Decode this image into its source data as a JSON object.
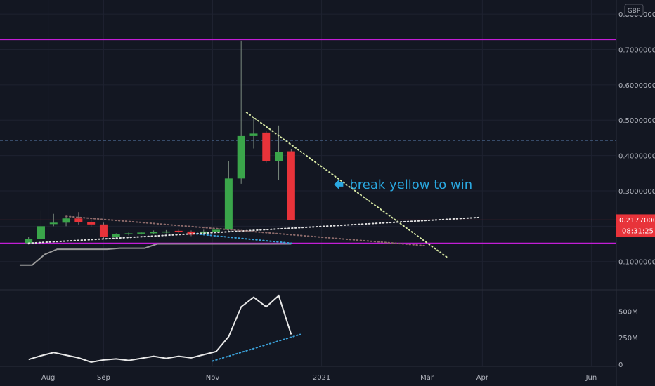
{
  "chart_data": {
    "type": "candlestick",
    "currency": "GBP",
    "price_axis": {
      "ticks": [
        0.1,
        0.2,
        0.3,
        0.4,
        0.5,
        0.6,
        0.7,
        0.8
      ],
      "tick_labels": [
        "0.10000000",
        "",
        "0.30000000",
        "0.40000000",
        "0.50000000",
        "0.60000000",
        "0.70000000",
        "0.80000000"
      ],
      "range": [
        0.02,
        0.84
      ]
    },
    "volume_axis": {
      "tick_labels": [
        "0",
        "250M",
        "500M"
      ],
      "ticks": [
        0,
        250,
        500
      ],
      "range": [
        -20,
        700
      ]
    },
    "x_labels": [
      {
        "label": "Aug",
        "date": "2020-08-01"
      },
      {
        "label": "Sep",
        "date": "2020-09-01"
      },
      {
        "label": "Nov",
        "date": "2020-11-01"
      },
      {
        "label": "2021",
        "date": "2021-01-01"
      },
      {
        "label": "Mar",
        "date": "2021-03-01"
      },
      {
        "label": "Apr",
        "date": "2021-04-01"
      },
      {
        "label": "Jun",
        "date": "2021-06-01"
      }
    ],
    "x_range": [
      "2020-07-05",
      "2021-06-15"
    ],
    "candles": [
      {
        "date": "2020-07-21",
        "o": 0.152,
        "h": 0.17,
        "l": 0.148,
        "c": 0.163
      },
      {
        "date": "2020-07-28",
        "o": 0.163,
        "h": 0.245,
        "l": 0.16,
        "c": 0.2
      },
      {
        "date": "2020-08-04",
        "o": 0.206,
        "h": 0.235,
        "l": 0.2,
        "c": 0.21
      },
      {
        "date": "2020-08-11",
        "o": 0.21,
        "h": 0.228,
        "l": 0.2,
        "c": 0.222
      },
      {
        "date": "2020-08-18",
        "o": 0.222,
        "h": 0.24,
        "l": 0.205,
        "c": 0.212
      },
      {
        "date": "2020-08-25",
        "o": 0.212,
        "h": 0.218,
        "l": 0.198,
        "c": 0.205
      },
      {
        "date": "2020-09-01",
        "o": 0.205,
        "h": 0.21,
        "l": 0.165,
        "c": 0.17
      },
      {
        "date": "2020-09-08",
        "o": 0.17,
        "h": 0.18,
        "l": 0.165,
        "c": 0.178
      },
      {
        "date": "2020-09-15",
        "o": 0.178,
        "h": 0.182,
        "l": 0.174,
        "c": 0.18
      },
      {
        "date": "2020-09-22",
        "o": 0.18,
        "h": 0.184,
        "l": 0.176,
        "c": 0.182
      },
      {
        "date": "2020-09-29",
        "o": 0.182,
        "h": 0.188,
        "l": 0.178,
        "c": 0.183
      },
      {
        "date": "2020-10-06",
        "o": 0.183,
        "h": 0.189,
        "l": 0.18,
        "c": 0.185
      },
      {
        "date": "2020-10-13",
        "o": 0.187,
        "h": 0.19,
        "l": 0.18,
        "c": 0.183
      },
      {
        "date": "2020-10-20",
        "o": 0.185,
        "h": 0.188,
        "l": 0.172,
        "c": 0.176
      },
      {
        "date": "2020-10-27",
        "o": 0.18,
        "h": 0.19,
        "l": 0.176,
        "c": 0.185
      },
      {
        "date": "2020-11-03",
        "o": 0.183,
        "h": 0.198,
        "l": 0.178,
        "c": 0.19
      },
      {
        "date": "2020-11-10",
        "o": 0.19,
        "h": 0.385,
        "l": 0.185,
        "c": 0.335
      },
      {
        "date": "2020-11-17",
        "o": 0.335,
        "h": 0.725,
        "l": 0.32,
        "c": 0.455
      },
      {
        "date": "2020-11-24",
        "o": 0.455,
        "h": 0.51,
        "l": 0.42,
        "c": 0.462
      },
      {
        "date": "2020-12-01",
        "o": 0.465,
        "h": 0.47,
        "l": 0.38,
        "c": 0.385
      },
      {
        "date": "2020-12-08",
        "o": 0.385,
        "h": 0.485,
        "l": 0.33,
        "c": 0.41
      },
      {
        "date": "2020-12-15",
        "o": 0.412,
        "h": 0.418,
        "l": 0.2177,
        "c": 0.2177
      }
    ],
    "volume_line": [
      {
        "date": "2020-07-21",
        "v": 45
      },
      {
        "date": "2020-07-28",
        "v": 80
      },
      {
        "date": "2020-08-04",
        "v": 110
      },
      {
        "date": "2020-08-11",
        "v": 85
      },
      {
        "date": "2020-08-18",
        "v": 60
      },
      {
        "date": "2020-08-25",
        "v": 20
      },
      {
        "date": "2020-09-01",
        "v": 40
      },
      {
        "date": "2020-09-08",
        "v": 50
      },
      {
        "date": "2020-09-15",
        "v": 35
      },
      {
        "date": "2020-09-22",
        "v": 55
      },
      {
        "date": "2020-09-29",
        "v": 75
      },
      {
        "date": "2020-10-06",
        "v": 55
      },
      {
        "date": "2020-10-13",
        "v": 75
      },
      {
        "date": "2020-10-20",
        "v": 60
      },
      {
        "date": "2020-10-27",
        "v": 90
      },
      {
        "date": "2020-11-03",
        "v": 120
      },
      {
        "date": "2020-11-10",
        "v": 260
      },
      {
        "date": "2020-11-17",
        "v": 540
      },
      {
        "date": "2020-11-24",
        "v": 630
      },
      {
        "date": "2020-12-01",
        "v": 540
      },
      {
        "date": "2020-12-08",
        "v": 645
      },
      {
        "date": "2020-12-15",
        "v": 280
      }
    ],
    "gray_line": [
      {
        "date": "2020-07-16",
        "v": 0.09
      },
      {
        "date": "2020-07-23",
        "v": 0.09
      },
      {
        "date": "2020-07-30",
        "v": 0.12
      },
      {
        "date": "2020-08-06",
        "v": 0.135
      },
      {
        "date": "2020-08-13",
        "v": 0.135
      },
      {
        "date": "2020-08-20",
        "v": 0.135
      },
      {
        "date": "2020-08-27",
        "v": 0.135
      },
      {
        "date": "2020-09-03",
        "v": 0.135
      },
      {
        "date": "2020-09-10",
        "v": 0.138
      },
      {
        "date": "2020-09-17",
        "v": 0.138
      },
      {
        "date": "2020-09-24",
        "v": 0.138
      },
      {
        "date": "2020-10-01",
        "v": 0.15
      },
      {
        "date": "2020-10-08",
        "v": 0.15
      },
      {
        "date": "2020-12-15",
        "v": 0.15
      }
    ],
    "horizontal_lines": [
      {
        "price": 0.728,
        "color": "#c21ed6",
        "style": "solid"
      },
      {
        "price": 0.152,
        "color": "#c21ed6",
        "style": "solid"
      },
      {
        "price": 0.443,
        "color": "#5b7fb0",
        "style": "dashed"
      },
      {
        "price": 0.2177,
        "color": "#7a2a32",
        "style": "solid"
      }
    ],
    "trendlines": [
      {
        "from": {
          "date": "2020-11-20",
          "price": 0.522
        },
        "to": {
          "date": "2021-03-12",
          "price": 0.113
        },
        "color": "#d7e8a4",
        "style": "dotted"
      },
      {
        "from": {
          "date": "2020-07-21",
          "price": 0.152
        },
        "to": {
          "date": "2021-03-31",
          "price": 0.225
        },
        "color": "#e0e0e0",
        "style": "dotted"
      },
      {
        "from": {
          "date": "2020-08-11",
          "price": 0.228
        },
        "to": {
          "date": "2021-02-28",
          "price": 0.145
        },
        "color": "#8c6a6a",
        "style": "dotted"
      },
      {
        "from": {
          "date": "2020-10-23",
          "price": 0.178
        },
        "to": {
          "date": "2020-12-15",
          "price": 0.152
        },
        "color": "#3aa0d8",
        "style": "dotted"
      }
    ],
    "volume_trendline": {
      "from": {
        "date": "2020-11-01",
        "v": 30
      },
      "to": {
        "date": "2020-12-20",
        "v": 280
      },
      "color": "#3aa0d8",
      "style": "dotted"
    },
    "last_price": {
      "value": "0.21770000",
      "price": 0.2177,
      "countdown": "08:31:25"
    },
    "annotation": {
      "text": "break yellow to win",
      "color": "#2aa8e0",
      "anchor": {
        "date": "2021-01-08",
        "price": 0.318
      }
    },
    "colors": {
      "up": "#3aa54a",
      "down": "#e8333a",
      "background": "#131722",
      "grid": "#1e2230",
      "axis_text": "#b2b5be",
      "volume_line": "#e8e8e8",
      "gray_line": "#9a9a9a",
      "badge": "#e8333a"
    }
  }
}
